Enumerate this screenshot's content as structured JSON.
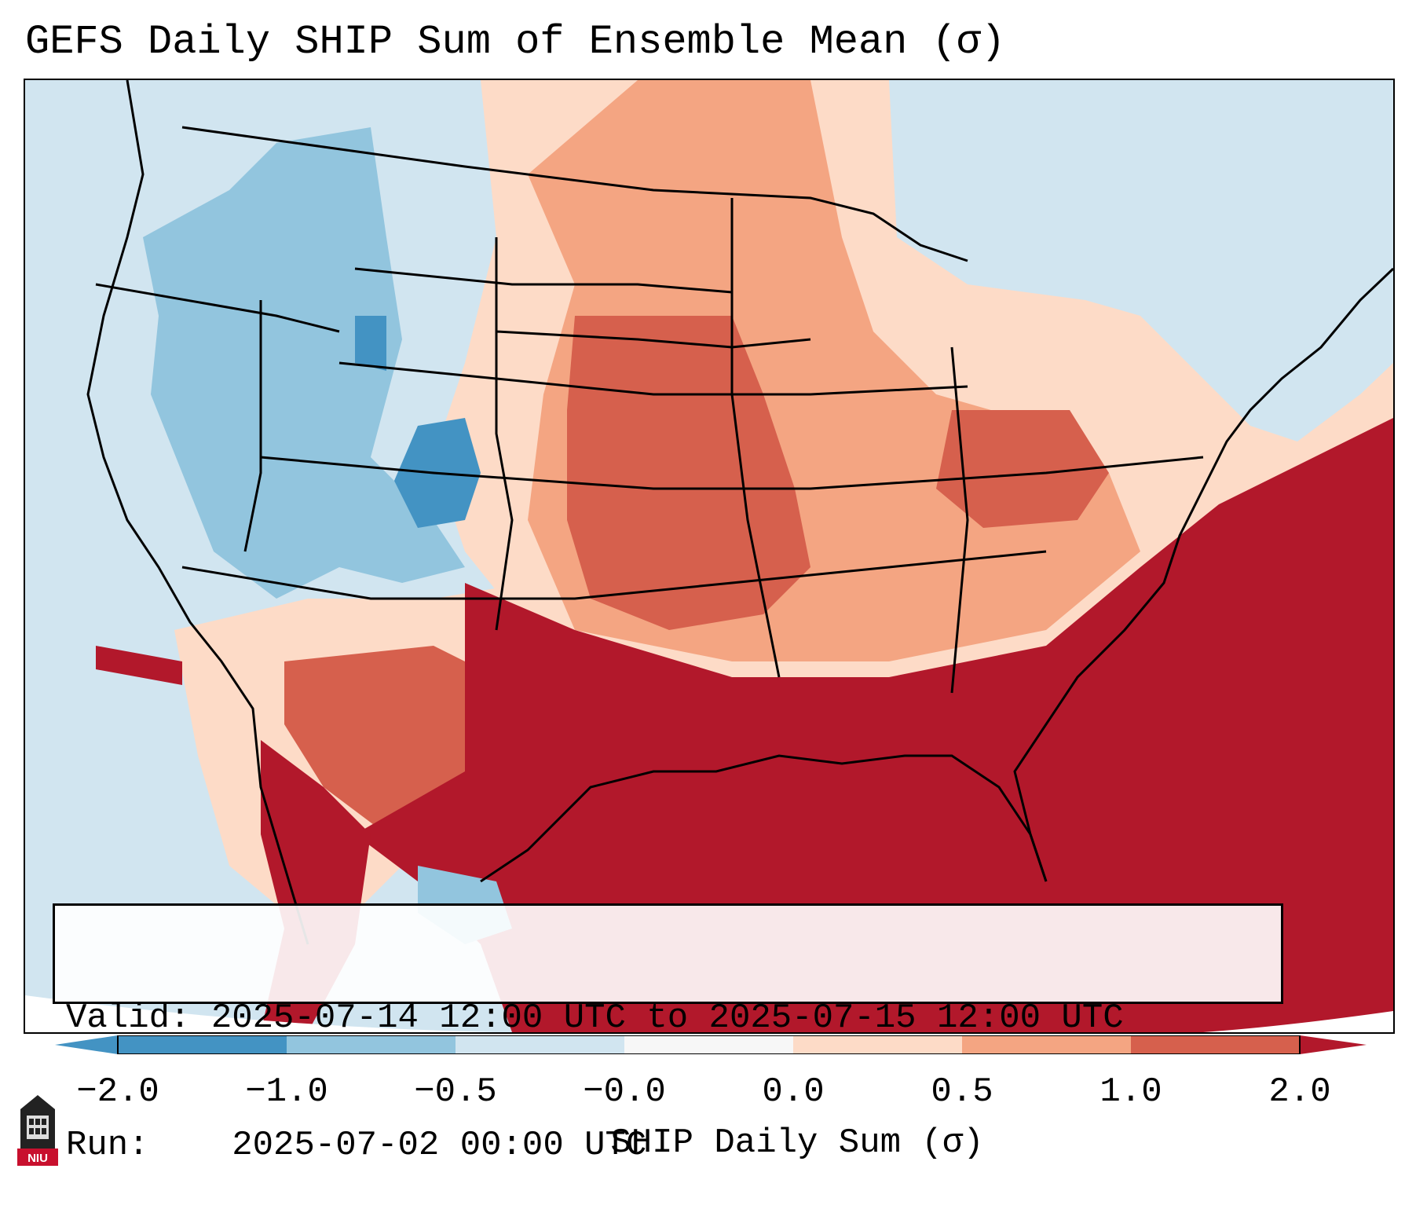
{
  "title": "GEFS Daily SHIP Sum of Ensemble Mean (σ)",
  "info": {
    "valid_label": "Valid:",
    "valid_value": "2025-07-14 12:00 UTC to 2025-07-15 12:00 UTC",
    "run_label": "Run:",
    "run_value": "2025-07-02 00:00 UTC"
  },
  "colorbar": {
    "label": "SHIP Daily Sum (σ)",
    "ticks": [
      "−2.0",
      "−1.0",
      "−0.5",
      "−0.0",
      "0.0",
      "0.5",
      "1.0",
      "2.0"
    ],
    "colors": [
      "#4393c3",
      "#92c5de",
      "#d1e5f0",
      "#f7f7f7",
      "#fddbc7",
      "#f4a582",
      "#d6604d",
      "#b2182b"
    ]
  },
  "map": {
    "region": "Continental United States",
    "palette": {
      "very_low": "#4393c3",
      "low": "#92c5de",
      "slightly_low": "#d1e5f0",
      "neutral": "#f7f7f7",
      "slightly_high": "#fddbc7",
      "high": "#f4a582",
      "very_high": "#d6604d",
      "extreme": "#b2182b"
    }
  },
  "logo": {
    "text": "NIU"
  }
}
